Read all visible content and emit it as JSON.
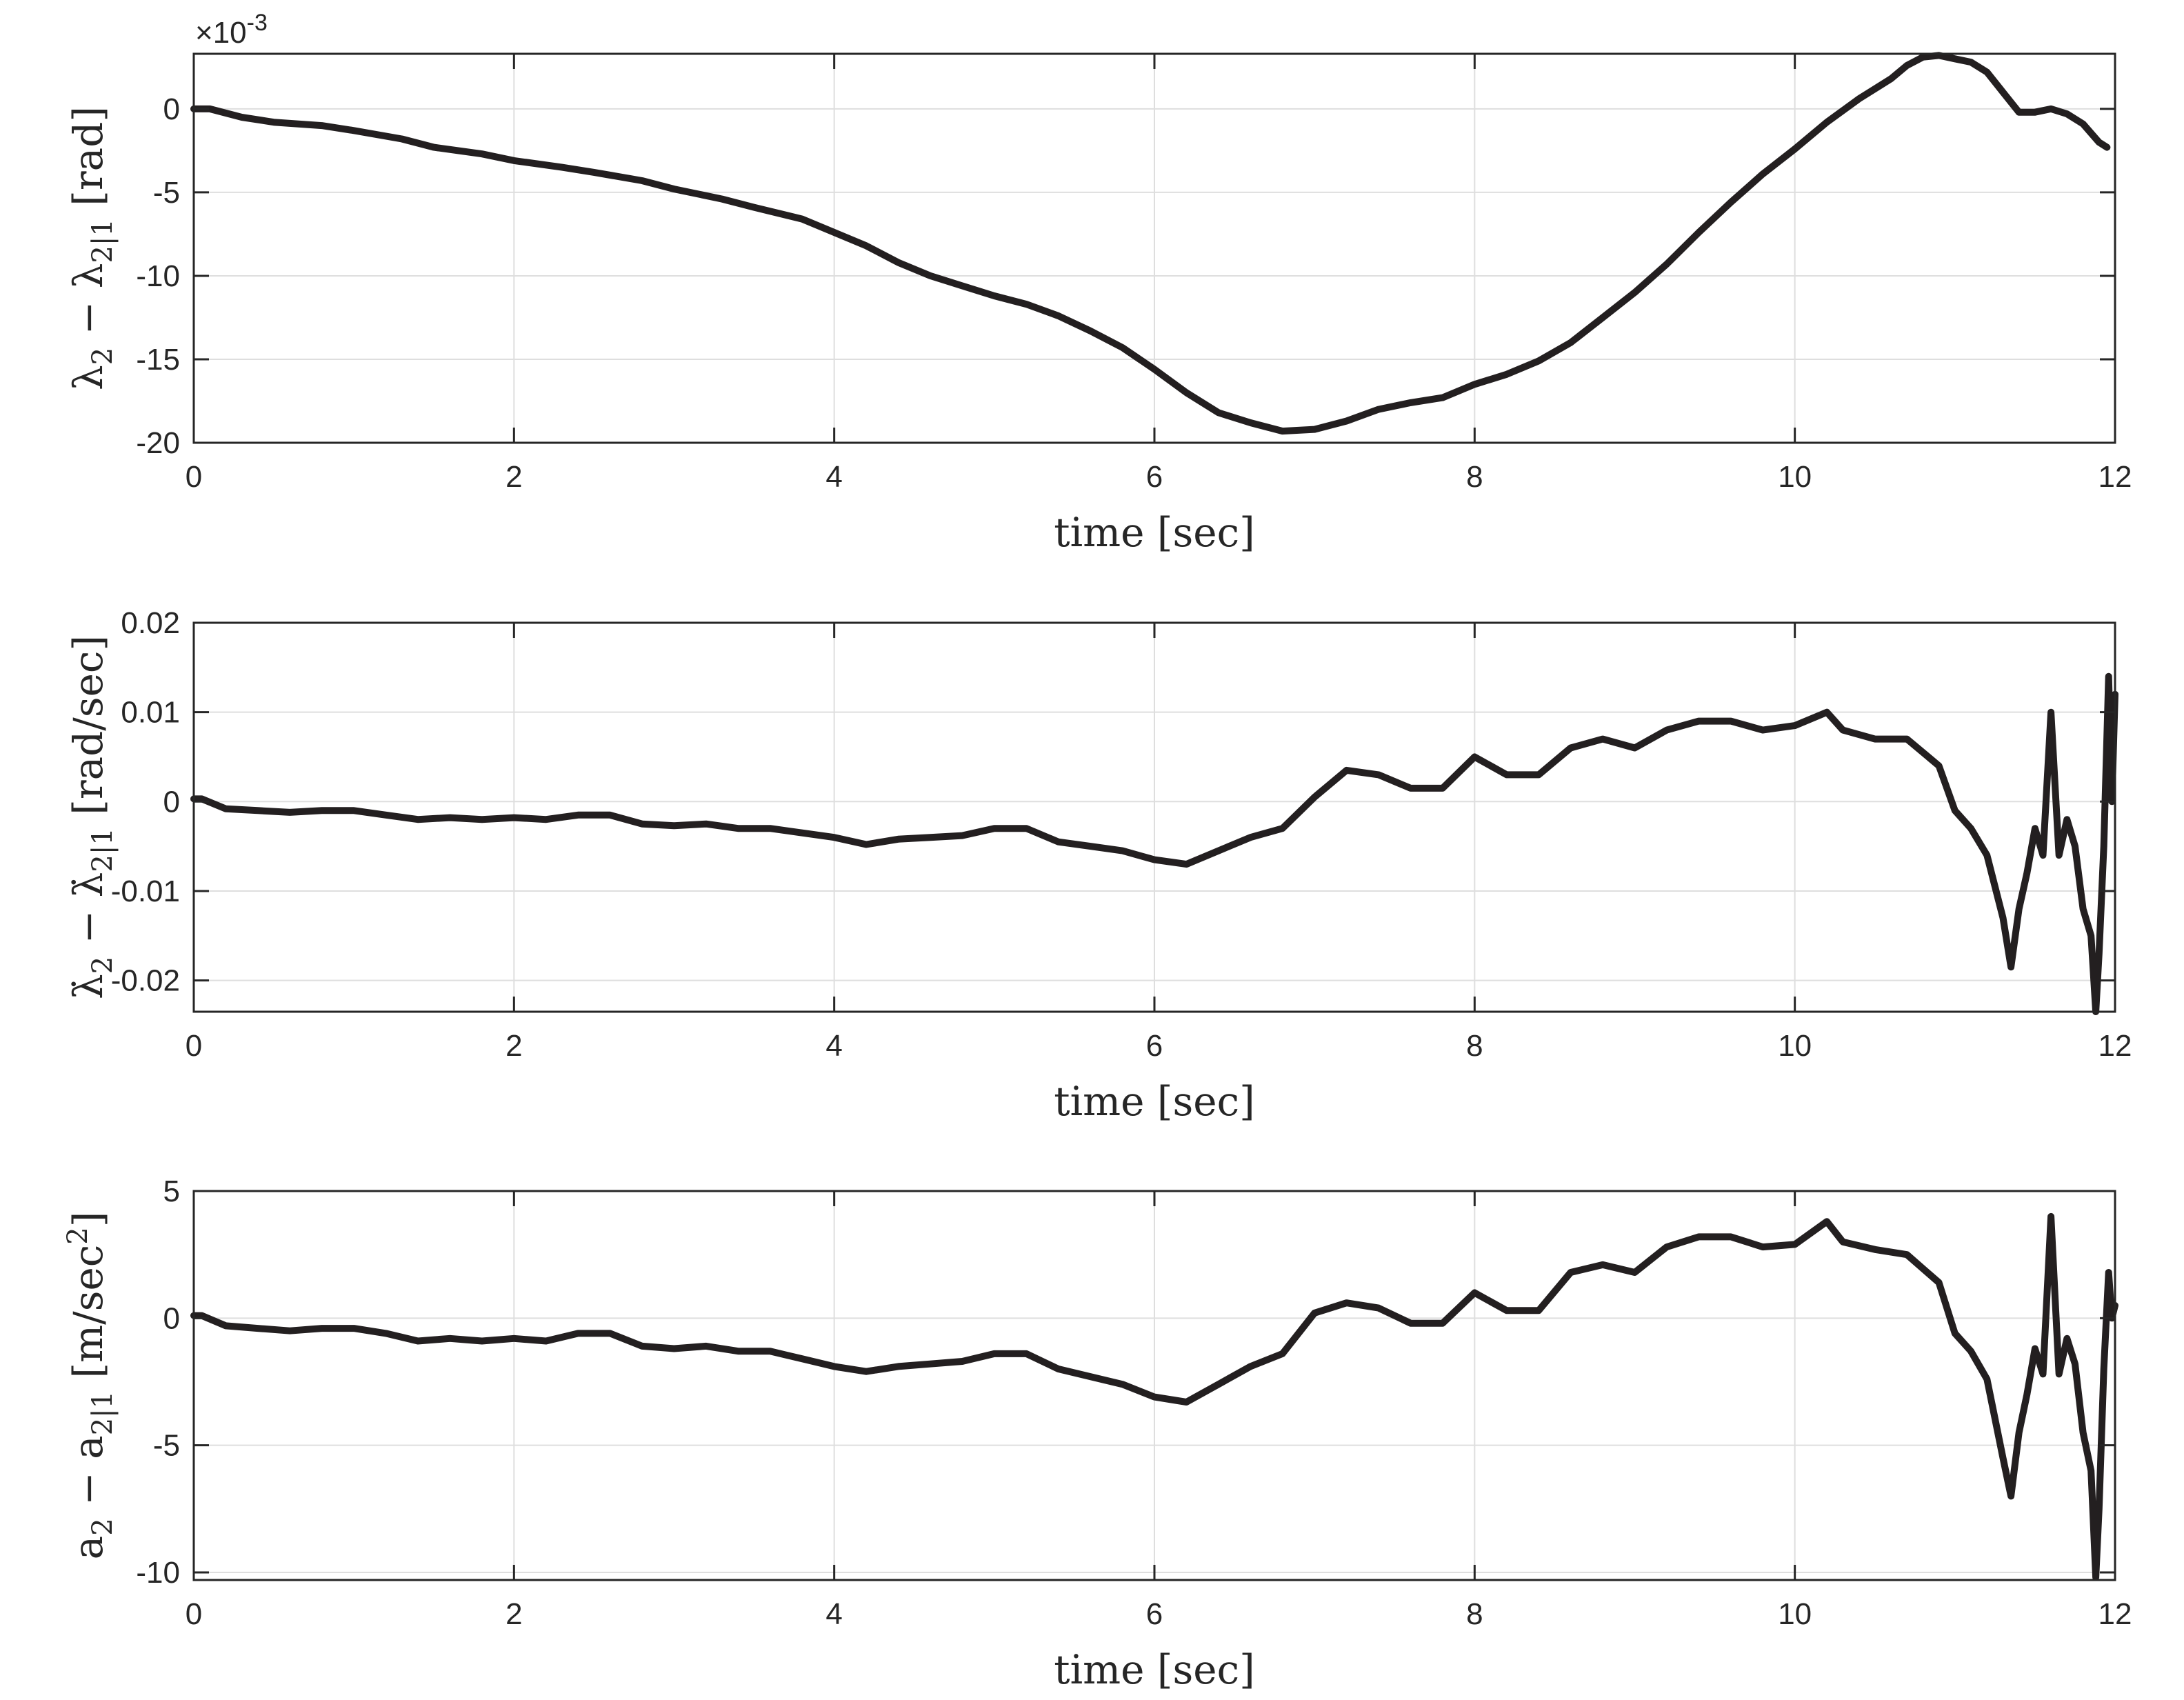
{
  "chart_data": [
    {
      "type": "line",
      "ylabel": "λ2 − λ2|1 [rad]",
      "ylabel_main": "λ",
      "ylabel_sub": "2",
      "ylabel_op": " − λ",
      "ylabel_sub2": "2|1",
      "ylabel_unit": " [rad]",
      "xlabel": "time [sec]",
      "exponent_mult": "×10",
      "exponent_power": "-3",
      "xlim": [
        0,
        12
      ],
      "ylim": [
        -20,
        3.3
      ],
      "xticks": [
        0,
        2,
        4,
        6,
        8,
        10,
        12
      ],
      "xtick_labels": [
        "0",
        "2",
        "4",
        "6",
        "8",
        "10",
        "12"
      ],
      "yticks": [
        -20,
        -15,
        -10,
        -5,
        0
      ],
      "ytick_labels": [
        "-20",
        "-15",
        "-10",
        "-5",
        "0"
      ],
      "grid": true,
      "line_color": "#231f20",
      "x": [
        0,
        0.1,
        0.3,
        0.5,
        0.8,
        1.0,
        1.3,
        1.5,
        1.8,
        2.0,
        2.3,
        2.5,
        2.8,
        3.0,
        3.3,
        3.5,
        3.8,
        4.0,
        4.2,
        4.4,
        4.6,
        4.8,
        5.0,
        5.2,
        5.4,
        5.6,
        5.8,
        6.0,
        6.2,
        6.4,
        6.6,
        6.8,
        7.0,
        7.2,
        7.4,
        7.6,
        7.8,
        8.0,
        8.2,
        8.4,
        8.6,
        8.8,
        9.0,
        9.2,
        9.4,
        9.6,
        9.8,
        10.0,
        10.2,
        10.4,
        10.6,
        10.7,
        10.8,
        10.9,
        11.0,
        11.1,
        11.2,
        11.3,
        11.4,
        11.5,
        11.6,
        11.7,
        11.8,
        11.9,
        11.95
      ],
      "y": [
        0,
        0,
        -0.5,
        -0.8,
        -1.0,
        -1.3,
        -1.8,
        -2.3,
        -2.7,
        -3.1,
        -3.5,
        -3.8,
        -4.3,
        -4.8,
        -5.4,
        -5.9,
        -6.6,
        -7.4,
        -8.2,
        -9.2,
        -10.0,
        -10.6,
        -11.2,
        -11.7,
        -12.4,
        -13.3,
        -14.3,
        -15.6,
        -17.0,
        -18.2,
        -18.8,
        -19.3,
        -19.2,
        -18.7,
        -18.0,
        -17.6,
        -17.3,
        -16.5,
        -15.9,
        -15.1,
        -14.0,
        -12.5,
        -11.0,
        -9.3,
        -7.4,
        -5.6,
        -3.9,
        -2.4,
        -0.8,
        0.6,
        1.8,
        2.6,
        3.1,
        3.2,
        3.0,
        2.8,
        2.2,
        1.0,
        -0.2,
        -0.2,
        0.0,
        -0.3,
        -0.9,
        -2.0,
        -2.3
      ]
    },
    {
      "type": "line",
      "ylabel": "λ̇2 − λ̇2|1 [rad/sec]",
      "ylabel_main": "λ̇",
      "ylabel_sub": "2",
      "ylabel_op": " − λ̇",
      "ylabel_sub2": "2|1",
      "ylabel_unit": " [rad/sec]",
      "xlabel": "time [sec]",
      "xlim": [
        0,
        12
      ],
      "ylim": [
        -0.0235,
        0.02
      ],
      "xticks": [
        0,
        2,
        4,
        6,
        8,
        10,
        12
      ],
      "xtick_labels": [
        "0",
        "2",
        "4",
        "6",
        "8",
        "10",
        "12"
      ],
      "yticks": [
        -0.02,
        -0.01,
        0,
        0.01,
        0.02
      ],
      "ytick_labels": [
        "-0.02",
        "-0.01",
        "0",
        "0.01",
        "0.02"
      ],
      "grid": true,
      "line_color": "#231f20",
      "x": [
        0,
        0.05,
        0.2,
        0.4,
        0.6,
        0.8,
        1.0,
        1.2,
        1.4,
        1.6,
        1.8,
        2.0,
        2.2,
        2.4,
        2.6,
        2.8,
        3.0,
        3.2,
        3.4,
        3.6,
        3.8,
        4.0,
        4.2,
        4.4,
        4.6,
        4.8,
        5.0,
        5.2,
        5.4,
        5.6,
        5.8,
        6.0,
        6.2,
        6.4,
        6.6,
        6.8,
        7.0,
        7.2,
        7.4,
        7.6,
        7.8,
        8.0,
        8.2,
        8.4,
        8.6,
        8.8,
        9.0,
        9.2,
        9.4,
        9.6,
        9.8,
        10.0,
        10.2,
        10.3,
        10.5,
        10.7,
        10.9,
        11.0,
        11.1,
        11.2,
        11.3,
        11.35,
        11.4,
        11.45,
        11.5,
        11.55,
        11.6,
        11.65,
        11.7,
        11.75,
        11.8,
        11.85,
        11.88,
        11.9,
        11.93,
        11.96,
        11.98,
        12.0
      ],
      "y": [
        0.0003,
        0.0003,
        -0.0008,
        -0.001,
        -0.0012,
        -0.001,
        -0.001,
        -0.0015,
        -0.002,
        -0.0018,
        -0.002,
        -0.0018,
        -0.002,
        -0.0015,
        -0.0015,
        -0.0025,
        -0.0027,
        -0.0025,
        -0.003,
        -0.003,
        -0.0035,
        -0.004,
        -0.0048,
        -0.0042,
        -0.004,
        -0.0038,
        -0.003,
        -0.003,
        -0.0045,
        -0.005,
        -0.0055,
        -0.0065,
        -0.007,
        -0.0055,
        -0.004,
        -0.003,
        0.0005,
        0.0035,
        0.003,
        0.0015,
        0.0015,
        0.005,
        0.003,
        0.003,
        0.006,
        0.007,
        0.006,
        0.008,
        0.009,
        0.009,
        0.008,
        0.0085,
        0.01,
        0.008,
        0.007,
        0.007,
        0.004,
        -0.001,
        -0.003,
        -0.006,
        -0.013,
        -0.0185,
        -0.012,
        -0.008,
        -0.003,
        -0.006,
        0.01,
        -0.006,
        -0.002,
        -0.005,
        -0.012,
        -0.015,
        -0.0235,
        -0.017,
        -0.005,
        0.014,
        0.0,
        0.012
      ]
    },
    {
      "type": "line",
      "ylabel": "a2 − a2|1 [m/sec2]",
      "ylabel_main": "a",
      "ylabel_sub": "2",
      "ylabel_op": " − a",
      "ylabel_sub2": "2|1",
      "ylabel_unit": " [m/sec",
      "ylabel_unit_sup": "2",
      "ylabel_unit_end": "]",
      "xlabel": "time [sec]",
      "xlim": [
        0,
        12
      ],
      "ylim": [
        -10.3,
        5
      ],
      "xticks": [
        0,
        2,
        4,
        6,
        8,
        10,
        12
      ],
      "xtick_labels": [
        "0",
        "2",
        "4",
        "6",
        "8",
        "10",
        "12"
      ],
      "yticks": [
        -10,
        -5,
        0,
        5
      ],
      "ytick_labels": [
        "-10",
        "-5",
        "0",
        "5"
      ],
      "grid": true,
      "line_color": "#231f20",
      "x": [
        0,
        0.05,
        0.2,
        0.4,
        0.6,
        0.8,
        1.0,
        1.2,
        1.4,
        1.6,
        1.8,
        2.0,
        2.2,
        2.4,
        2.6,
        2.8,
        3.0,
        3.2,
        3.4,
        3.6,
        3.8,
        4.0,
        4.2,
        4.4,
        4.6,
        4.8,
        5.0,
        5.2,
        5.4,
        5.6,
        5.8,
        6.0,
        6.2,
        6.4,
        6.6,
        6.8,
        7.0,
        7.2,
        7.4,
        7.6,
        7.8,
        8.0,
        8.2,
        8.4,
        8.6,
        8.8,
        9.0,
        9.2,
        9.4,
        9.6,
        9.8,
        10.0,
        10.2,
        10.3,
        10.5,
        10.7,
        10.9,
        11.0,
        11.1,
        11.2,
        11.3,
        11.35,
        11.4,
        11.45,
        11.5,
        11.55,
        11.6,
        11.65,
        11.7,
        11.75,
        11.8,
        11.85,
        11.88,
        11.9,
        11.93,
        11.96,
        11.98,
        12.0
      ],
      "y": [
        0.1,
        0.1,
        -0.3,
        -0.4,
        -0.5,
        -0.4,
        -0.4,
        -0.6,
        -0.9,
        -0.8,
        -0.9,
        -0.8,
        -0.9,
        -0.6,
        -0.6,
        -1.1,
        -1.2,
        -1.1,
        -1.3,
        -1.3,
        -1.6,
        -1.9,
        -2.1,
        -1.9,
        -1.8,
        -1.7,
        -1.4,
        -1.4,
        -2.0,
        -2.3,
        -2.6,
        -3.1,
        -3.3,
        -2.6,
        -1.9,
        -1.4,
        0.2,
        0.6,
        0.4,
        -0.2,
        -0.2,
        1.0,
        0.3,
        0.3,
        1.8,
        2.1,
        1.8,
        2.8,
        3.2,
        3.2,
        2.8,
        2.9,
        3.8,
        3.0,
        2.7,
        2.5,
        1.4,
        -0.6,
        -1.3,
        -2.4,
        -5.5,
        -7.0,
        -4.5,
        -3.0,
        -1.2,
        -2.2,
        4.0,
        -2.2,
        -0.8,
        -1.8,
        -4.5,
        -6.0,
        -10.2,
        -7.5,
        -2.0,
        1.8,
        0.0,
        0.5
      ]
    }
  ]
}
